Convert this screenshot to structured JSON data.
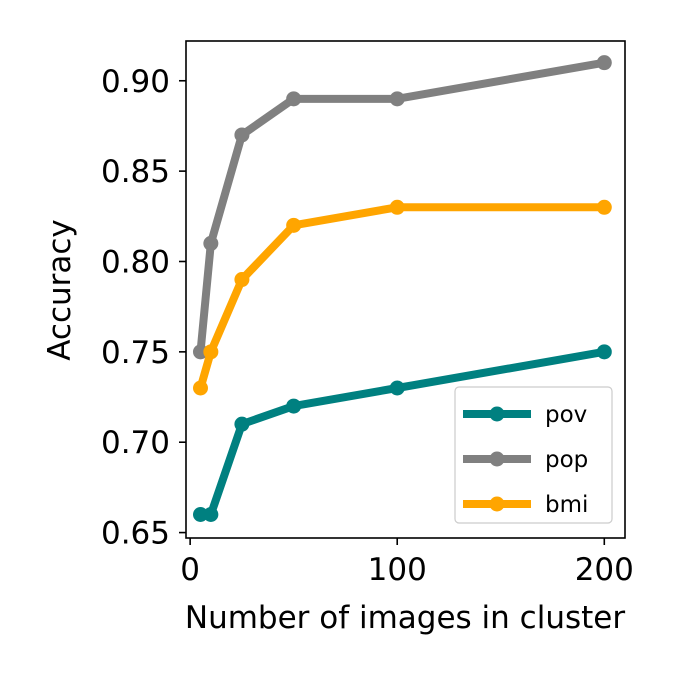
{
  "chart_data": {
    "type": "line",
    "title": "",
    "xlabel": "Number of images in cluster",
    "ylabel": "Accuracy",
    "xlim": [
      -2,
      210
    ],
    "ylim": [
      0.647,
      0.922
    ],
    "xticks": [
      0,
      100,
      200
    ],
    "xtick_labels": [
      "0",
      "100",
      "200"
    ],
    "yticks": [
      0.65,
      0.7,
      0.75,
      0.8,
      0.85,
      0.9
    ],
    "ytick_labels": [
      "0.65",
      "0.70",
      "0.75",
      "0.80",
      "0.85",
      "0.90"
    ],
    "grid": false,
    "legend_position": "bottom-right",
    "x": [
      5,
      10,
      25,
      50,
      100,
      200
    ],
    "series": [
      {
        "name": "pov",
        "color": "#008080",
        "values": [
          0.66,
          0.66,
          0.71,
          0.72,
          0.73,
          0.75
        ]
      },
      {
        "name": "pop",
        "color": "#808080",
        "values": [
          0.75,
          0.81,
          0.87,
          0.89,
          0.89,
          0.91
        ]
      },
      {
        "name": "bmi",
        "color": "#FFA500",
        "values": [
          0.73,
          0.75,
          0.79,
          0.82,
          0.83,
          0.83
        ]
      }
    ],
    "legend_order": [
      "pov",
      "pop",
      "bmi"
    ]
  }
}
